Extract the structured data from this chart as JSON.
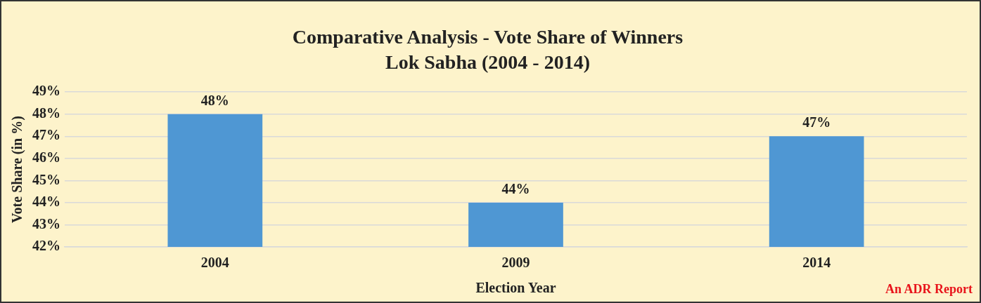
{
  "chart_data": {
    "type": "bar",
    "title": "Comparative Analysis - Vote Share of Winners",
    "subtitle": "Lok Sabha (2004 - 2014)",
    "xlabel": "Election Year",
    "ylabel": "Vote Share (in %)",
    "categories": [
      "2004",
      "2009",
      "2014"
    ],
    "values": [
      48,
      44,
      47
    ],
    "value_labels": [
      "48%",
      "44%",
      "47%"
    ],
    "color": "#4f97d3",
    "ylim": [
      42,
      49
    ],
    "yticks": [
      {
        "value": 42,
        "label": "42%"
      },
      {
        "value": 43,
        "label": "43%"
      },
      {
        "value": 44,
        "label": "44%"
      },
      {
        "value": 45,
        "label": "45%"
      },
      {
        "value": 46,
        "label": "46%"
      },
      {
        "value": 47,
        "label": "47%"
      },
      {
        "value": 48,
        "label": "48%"
      },
      {
        "value": 49,
        "label": "49%"
      }
    ],
    "grid": "y",
    "legend": false,
    "annotations": [
      "An ADR Report"
    ]
  }
}
